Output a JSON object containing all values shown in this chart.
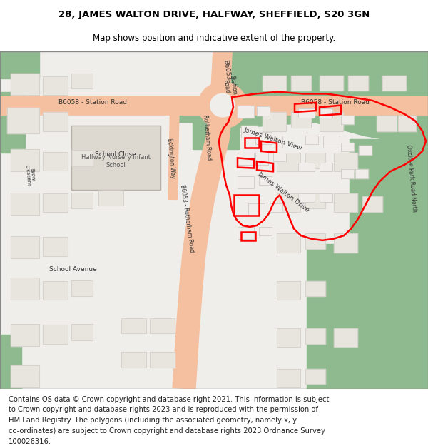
{
  "title_line1": "28, JAMES WALTON DRIVE, HALFWAY, SHEFFIELD, S20 3GN",
  "title_line2": "Map shows position and indicative extent of the property.",
  "footer_lines": [
    "Contains OS data © Crown copyright and database right 2021. This information is subject",
    "to Crown copyright and database rights 2023 and is reproduced with the permission of",
    "HM Land Registry. The polygons (including the associated geometry, namely x, y",
    "co-ordinates) are subject to Crown copyright and database rights 2023 Ordnance Survey",
    "100026316."
  ],
  "title_fontsize": 9.5,
  "subtitle_fontsize": 8.5,
  "footer_fontsize": 7.2,
  "fig_width": 6.0,
  "fig_height": 6.25,
  "map_bg_color": "#f0eeeb",
  "green_color": "#8fba8f",
  "red_outline_color": "#ff0000",
  "road_color": "#f5c0a0",
  "building_color": "#e8e4de",
  "building_outline": "#d0ccc5"
}
